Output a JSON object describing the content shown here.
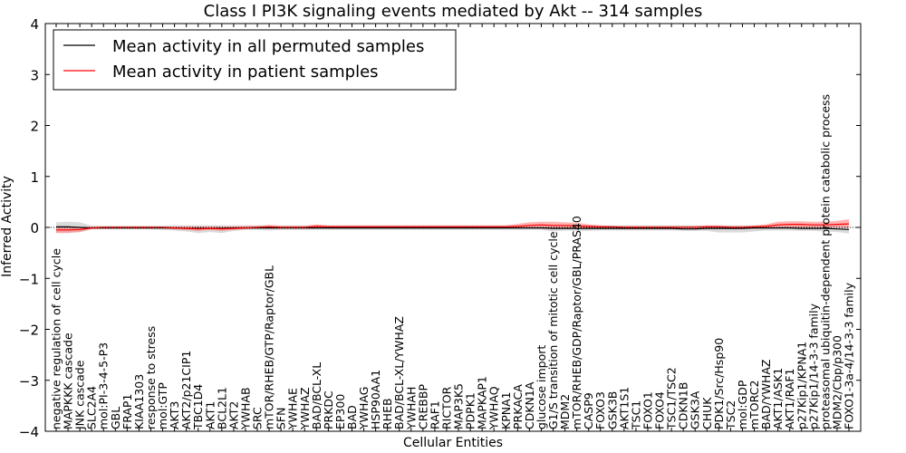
{
  "chart_data": {
    "type": "line",
    "title": "Class I PI3K signaling events mediated by Akt -- 314 samples",
    "xlabel": "Cellular Entities",
    "ylabel": "Inferred Activity",
    "ylim": [
      -4,
      4
    ],
    "yticks": [
      "-4",
      "-3",
      "-2",
      "-1",
      "0",
      "1",
      "2",
      "3",
      "4"
    ],
    "legend": {
      "placement": "top-left",
      "entries": [
        {
          "label": "Mean activity in all permuted samples",
          "color": "#000000"
        },
        {
          "label": "Mean activity in patient samples",
          "color": "#ff0000"
        }
      ]
    },
    "categories": [
      "negative regulation of cell cycle",
      "MAPKKK cascade",
      "JNK cascade",
      "SLC2A4",
      "mol:PI-3-4-5-P3",
      "GBL",
      "FRAP1",
      "KIAA1303",
      "response to stress",
      "mol:GTP",
      "AKT3",
      "AKT2/p21CIP1",
      "TBC1D4",
      "AKT1",
      "BCL2L1",
      "AKT2",
      "YWHAB",
      "SRC",
      "mTOR/RHEB/GTP/Raptor/GBL",
      "SFN",
      "YWHAE",
      "YWHAZ",
      "BAD/BCL-XL",
      "PRKDC",
      "EP300",
      "BAD",
      "YWHAG",
      "HSP90AA1",
      "RHEB",
      "BAD/BCL-XL/YWHAZ",
      "YWHAH",
      "CREBBP",
      "RAF1",
      "RICTOR",
      "MAP3K5",
      "PDPK1",
      "MAPKAP1",
      "YWHAQ",
      "KPNA1",
      "PRKACA",
      "CDKN1A",
      "glucose import",
      "G1/S transition of mitotic cell cycle",
      "MDM2",
      "mTOR/RHEB/GDP/Raptor/GBL/PRAS40",
      "CASP9",
      "FOXO3",
      "GSK3B",
      "AKT1S1",
      "TSC1",
      "FOXO1",
      "FOXO4",
      "TSC1/TSC2",
      "CDKN1B",
      "GSK3A",
      "CHUK",
      "PDK1/Src/Hsp90",
      "TSC2",
      "mol:GDP",
      "mTORC2",
      "BAD/YWHAZ",
      "AKT1/ASK1",
      "AKT1/RAF1",
      "p27Kip1/KPNA1",
      "p27Kip1/14-3-3 family",
      "proteasomal ubiquitin-dependent protein catabolic process",
      "MDM2/Cbp/p300",
      "FOXO1-3a-4/14-3-3 family"
    ],
    "series": [
      {
        "name": "Mean activity in all permuted samples",
        "color": "#000000",
        "band_color": "#cccccc",
        "values": [
          0.01,
          0.01,
          0.0,
          -0.01,
          -0.01,
          -0.01,
          -0.01,
          -0.01,
          -0.01,
          -0.01,
          -0.01,
          -0.02,
          -0.02,
          -0.02,
          -0.02,
          -0.01,
          -0.01,
          -0.01,
          -0.01,
          -0.01,
          -0.01,
          -0.01,
          -0.01,
          -0.01,
          -0.01,
          -0.01,
          -0.01,
          -0.01,
          -0.01,
          -0.01,
          -0.01,
          -0.01,
          -0.01,
          -0.01,
          -0.01,
          -0.01,
          -0.01,
          -0.01,
          -0.01,
          -0.01,
          -0.01,
          -0.01,
          -0.02,
          -0.02,
          -0.02,
          -0.02,
          -0.02,
          -0.02,
          -0.02,
          -0.02,
          -0.02,
          -0.02,
          -0.02,
          -0.03,
          -0.03,
          -0.02,
          -0.02,
          -0.02,
          -0.02,
          -0.01,
          -0.01,
          -0.01,
          -0.01,
          -0.02,
          -0.02,
          -0.02,
          -0.03,
          -0.04
        ],
        "upper": [
          0.1,
          0.11,
          0.1,
          0.03,
          0.03,
          0.03,
          0.03,
          0.03,
          0.03,
          0.03,
          0.04,
          0.04,
          0.04,
          0.04,
          0.04,
          0.04,
          0.04,
          0.04,
          0.04,
          0.04,
          0.04,
          0.04,
          0.04,
          0.04,
          0.04,
          0.04,
          0.04,
          0.04,
          0.04,
          0.04,
          0.04,
          0.04,
          0.04,
          0.04,
          0.04,
          0.04,
          0.04,
          0.04,
          0.04,
          0.04,
          0.04,
          0.04,
          0.04,
          0.04,
          0.04,
          0.04,
          0.04,
          0.04,
          0.04,
          0.04,
          0.04,
          0.04,
          0.04,
          0.04,
          0.04,
          0.04,
          0.04,
          0.04,
          0.04,
          0.04,
          0.04,
          0.04,
          0.04,
          0.04,
          0.04,
          0.04,
          0.04,
          0.04
        ],
        "lower": [
          -0.1,
          -0.1,
          -0.09,
          -0.04,
          -0.04,
          -0.04,
          -0.04,
          -0.04,
          -0.04,
          -0.05,
          -0.06,
          -0.08,
          -0.11,
          -0.09,
          -0.11,
          -0.07,
          -0.05,
          -0.05,
          -0.06,
          -0.05,
          -0.05,
          -0.05,
          -0.05,
          -0.05,
          -0.05,
          -0.05,
          -0.05,
          -0.05,
          -0.05,
          -0.05,
          -0.05,
          -0.05,
          -0.05,
          -0.05,
          -0.05,
          -0.05,
          -0.05,
          -0.05,
          -0.05,
          -0.05,
          -0.05,
          -0.05,
          -0.08,
          -0.06,
          -0.07,
          -0.07,
          -0.06,
          -0.06,
          -0.06,
          -0.06,
          -0.06,
          -0.06,
          -0.06,
          -0.07,
          -0.07,
          -0.07,
          -0.1,
          -0.1,
          -0.1,
          -0.08,
          -0.06,
          -0.06,
          -0.06,
          -0.07,
          -0.07,
          -0.08,
          -0.09,
          -0.12
        ]
      },
      {
        "name": "Mean activity in patient samples",
        "color": "#ff0000",
        "band_color": "#ff7777",
        "values": [
          -0.05,
          -0.05,
          -0.04,
          -0.01,
          0.0,
          0.0,
          0.0,
          0.0,
          0.0,
          0.0,
          -0.01,
          -0.02,
          -0.03,
          -0.02,
          -0.03,
          -0.02,
          -0.01,
          0.0,
          0.01,
          0.0,
          0.0,
          0.0,
          0.02,
          0.01,
          0.01,
          0.01,
          0.01,
          0.01,
          0.01,
          0.01,
          0.01,
          0.01,
          0.01,
          0.01,
          0.01,
          0.01,
          0.01,
          0.01,
          0.01,
          0.02,
          0.04,
          0.05,
          0.04,
          0.04,
          0.03,
          0.02,
          0.01,
          0.01,
          0.0,
          0.0,
          0.0,
          0.0,
          0.0,
          0.0,
          0.0,
          0.01,
          0.01,
          0.0,
          0.0,
          0.01,
          0.02,
          0.05,
          0.06,
          0.06,
          0.05,
          0.05,
          0.06,
          0.07
        ],
        "upper": [
          0.0,
          0.0,
          0.0,
          0.02,
          0.02,
          0.02,
          0.02,
          0.02,
          0.02,
          0.02,
          0.02,
          0.02,
          0.02,
          0.02,
          0.02,
          0.02,
          0.03,
          0.03,
          0.05,
          0.03,
          0.03,
          0.03,
          0.06,
          0.04,
          0.04,
          0.04,
          0.04,
          0.04,
          0.04,
          0.04,
          0.04,
          0.04,
          0.04,
          0.04,
          0.04,
          0.04,
          0.04,
          0.04,
          0.04,
          0.07,
          0.1,
          0.11,
          0.11,
          0.1,
          0.09,
          0.06,
          0.04,
          0.03,
          0.03,
          0.03,
          0.03,
          0.03,
          0.03,
          0.03,
          0.03,
          0.04,
          0.04,
          0.03,
          0.03,
          0.04,
          0.06,
          0.11,
          0.12,
          0.12,
          0.11,
          0.11,
          0.13,
          0.16
        ],
        "lower": [
          -0.11,
          -0.11,
          -0.09,
          -0.03,
          -0.02,
          -0.02,
          -0.02,
          -0.02,
          -0.02,
          -0.02,
          -0.04,
          -0.05,
          -0.07,
          -0.05,
          -0.07,
          -0.05,
          -0.03,
          -0.02,
          -0.02,
          -0.02,
          -0.02,
          -0.02,
          -0.02,
          -0.01,
          -0.01,
          -0.01,
          -0.01,
          -0.01,
          -0.01,
          -0.01,
          -0.01,
          -0.01,
          -0.01,
          -0.01,
          -0.01,
          -0.01,
          -0.01,
          -0.01,
          -0.01,
          -0.02,
          -0.01,
          -0.01,
          -0.02,
          -0.02,
          -0.02,
          -0.01,
          -0.01,
          -0.01,
          -0.02,
          -0.02,
          -0.02,
          -0.02,
          -0.02,
          -0.02,
          -0.02,
          -0.01,
          -0.01,
          -0.02,
          -0.02,
          -0.02,
          -0.01,
          0.0,
          0.0,
          0.0,
          0.0,
          0.0,
          0.0,
          -0.01
        ]
      }
    ]
  }
}
